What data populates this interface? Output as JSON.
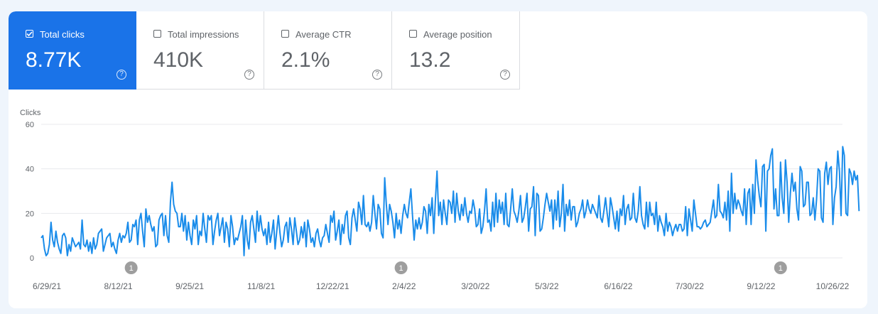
{
  "metrics": [
    {
      "label": "Total clicks",
      "value": "8.77K",
      "checked": true
    },
    {
      "label": "Total impressions",
      "value": "410K",
      "checked": false
    },
    {
      "label": "Average CTR",
      "value": "2.1%",
      "checked": false
    },
    {
      "label": "Average position",
      "value": "13.2",
      "checked": false
    }
  ],
  "help_glyph": "?",
  "colors": {
    "accent": "#1a73e8",
    "line": "#1a8cea",
    "grid": "#e8eaed",
    "annotation": "#9e9e9e"
  },
  "chart_data": {
    "type": "line",
    "ylabel": "Clicks",
    "ylim": [
      0,
      60
    ],
    "yticks": [
      0,
      20,
      40,
      60
    ],
    "xlim": [
      "2021-06-29",
      "2022-10-31"
    ],
    "xticks": [
      "6/29/21",
      "8/12/21",
      "9/25/21",
      "11/8/21",
      "12/22/21",
      "2/4/22",
      "3/20/22",
      "5/3/22",
      "6/16/22",
      "7/30/22",
      "9/12/22",
      "10/26/22"
    ],
    "grid": true,
    "annotations": [
      {
        "date": "2021-08-23",
        "label": "1"
      },
      {
        "date": "2022-02-04",
        "label": "1"
      },
      {
        "date": "2022-09-24",
        "label": "1"
      }
    ],
    "series": [
      {
        "start_date": "2021-06-29",
        "values": [
          9,
          10,
          4,
          1,
          2,
          6,
          16,
          8,
          5,
          12,
          7,
          4,
          2,
          10,
          11,
          9,
          1,
          6,
          3,
          9,
          7,
          5,
          6,
          7,
          4,
          17,
          6,
          5,
          8,
          3,
          7,
          2,
          9,
          4,
          6,
          11,
          12,
          13,
          3,
          6,
          9,
          10,
          11,
          5,
          7,
          4,
          2,
          8,
          11,
          7,
          10,
          9,
          11,
          16,
          7,
          8,
          15,
          14,
          17,
          6,
          17,
          20,
          12,
          5,
          22,
          16,
          19,
          15,
          12,
          14,
          5,
          6,
          17,
          19,
          20,
          10,
          19,
          10,
          7,
          25,
          34,
          24,
          21,
          20,
          14,
          14,
          20,
          12,
          19,
          8,
          16,
          10,
          6,
          17,
          13,
          19,
          6,
          12,
          10,
          20,
          13,
          7,
          19,
          17,
          19,
          6,
          12,
          17,
          20,
          10,
          14,
          18,
          7,
          16,
          13,
          5,
          19,
          14,
          6,
          9,
          8,
          11,
          14,
          19,
          1,
          17,
          8,
          4,
          16,
          19,
          13,
          7,
          21,
          12,
          19,
          13,
          10,
          13,
          6,
          16,
          7,
          11,
          17,
          4,
          12,
          19,
          11,
          5,
          8,
          14,
          16,
          7,
          18,
          13,
          6,
          18,
          12,
          6,
          8,
          14,
          9,
          16,
          5,
          17,
          13,
          7,
          9,
          5,
          11,
          13,
          8,
          5,
          9,
          10,
          15,
          11,
          7,
          19,
          16,
          21,
          8,
          12,
          17,
          6,
          15,
          11,
          19,
          21,
          9,
          6,
          18,
          22,
          17,
          12,
          25,
          22,
          15,
          28,
          15,
          14,
          16,
          12,
          16,
          28,
          20,
          13,
          24,
          22,
          11,
          9,
          36,
          24,
          15,
          24,
          21,
          16,
          9,
          20,
          13,
          17,
          11,
          19,
          24,
          20,
          18,
          25,
          31,
          19,
          8,
          17,
          13,
          18,
          13,
          16,
          23,
          21,
          11,
          24,
          19,
          27,
          11,
          26,
          39,
          19,
          25,
          15,
          26,
          20,
          15,
          26,
          25,
          20,
          30,
          16,
          29,
          21,
          17,
          24,
          19,
          27,
          20,
          16,
          21,
          20,
          26,
          22,
          14,
          15,
          22,
          11,
          14,
          21,
          31,
          16,
          17,
          12,
          25,
          14,
          29,
          16,
          26,
          20,
          25,
          15,
          29,
          15,
          14,
          22,
          31,
          21,
          19,
          16,
          21,
          28,
          16,
          18,
          23,
          29,
          12,
          22,
          23,
          32,
          10,
          29,
          28,
          12,
          13,
          18,
          24,
          29,
          25,
          21,
          26,
          13,
          26,
          17,
          30,
          14,
          20,
          33,
          12,
          24,
          19,
          26,
          17,
          23,
          23,
          14,
          16,
          20,
          22,
          26,
          18,
          21,
          26,
          22,
          20,
          24,
          22,
          20,
          18,
          28,
          18,
          16,
          21,
          27,
          20,
          14,
          27,
          23,
          18,
          13,
          21,
          12,
          22,
          19,
          28,
          15,
          22,
          24,
          17,
          18,
          29,
          18,
          16,
          21,
          32,
          19,
          15,
          13,
          25,
          14,
          25,
          19,
          20,
          15,
          25,
          12,
          19,
          16,
          14,
          10,
          20,
          12,
          16,
          14,
          10,
          13,
          15,
          12,
          15,
          15,
          12,
          13,
          23,
          10,
          22,
          17,
          12,
          26,
          20,
          14,
          14,
          13,
          14,
          16,
          17,
          14,
          15,
          16,
          21,
          26,
          18,
          19,
          33,
          21,
          20,
          18,
          25,
          17,
          30,
          12,
          38,
          20,
          29,
          22,
          26,
          24,
          21,
          19,
          31,
          15,
          29,
          31,
          15,
          33,
          20,
          44,
          35,
          28,
          23,
          41,
          42,
          12,
          39,
          40,
          46,
          49,
          22,
          31,
          19,
          19,
          43,
          27,
          20,
          44,
          34,
          16,
          29,
          38,
          30,
          34,
          22,
          17,
          41,
          39,
          23,
          24,
          34,
          34,
          19,
          20,
          27,
          17,
          26,
          40,
          39,
          18,
          16,
          38,
          43,
          33,
          40,
          41,
          15,
          27,
          32,
          48,
          39,
          19,
          50,
          46,
          20,
          19,
          40,
          38,
          33,
          39,
          35,
          37,
          21
        ],
        "color": "#1a8cea"
      }
    ]
  }
}
